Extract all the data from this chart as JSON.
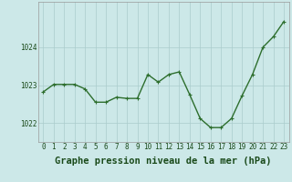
{
  "x": [
    0,
    1,
    2,
    3,
    4,
    5,
    6,
    7,
    8,
    9,
    10,
    11,
    12,
    13,
    14,
    15,
    16,
    17,
    18,
    19,
    20,
    21,
    22,
    23
  ],
  "y": [
    1022.82,
    1023.02,
    1023.02,
    1023.02,
    1022.9,
    1022.55,
    1022.55,
    1022.68,
    1022.65,
    1022.65,
    1023.28,
    1023.08,
    1023.28,
    1023.35,
    1022.75,
    1022.12,
    1021.88,
    1021.88,
    1022.12,
    1022.72,
    1023.28,
    1024.0,
    1024.28,
    1024.68
  ],
  "line_color": "#2d6e2d",
  "marker_color": "#2d6e2d",
  "bg_color": "#cce8e8",
  "grid_color": "#aacccc",
  "xlabel": "Graphe pression niveau de la mer (hPa)",
  "xlabel_fontsize": 7.5,
  "ylim": [
    1021.5,
    1025.2
  ],
  "yticks": [
    1022,
    1023,
    1024
  ],
  "xticks": [
    0,
    1,
    2,
    3,
    4,
    5,
    6,
    7,
    8,
    9,
    10,
    11,
    12,
    13,
    14,
    15,
    16,
    17,
    18,
    19,
    20,
    21,
    22,
    23
  ],
  "tick_fontsize": 5.5,
  "line_width": 1.0,
  "marker_size": 2.5
}
